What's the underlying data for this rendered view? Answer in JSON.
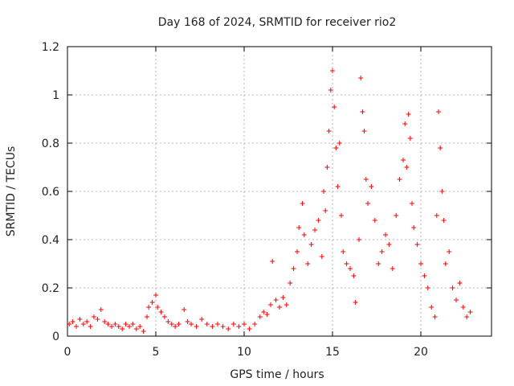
{
  "chart_data": {
    "type": "scatter",
    "title": "Day 168 of 2024, SRMTID for receiver rio2",
    "xlabel": "GPS time / hours",
    "ylabel": "SRMTID / TECUs",
    "xlim": [
      0,
      24
    ],
    "ylim": [
      0,
      1.2
    ],
    "xticks": [
      0,
      5,
      10,
      15,
      20
    ],
    "xtick_labels": [
      "0",
      "5",
      "10",
      "15",
      "20"
    ],
    "yticks": [
      0,
      0.2,
      0.4,
      0.6,
      0.8,
      1,
      1.2
    ],
    "ytick_labels": [
      "0",
      "0.2",
      "0.4",
      "0.6",
      "0.8",
      "1",
      "1.2"
    ],
    "grid": true,
    "marker": "+",
    "color": "#ff0000",
    "series": [
      {
        "name": "SRMTID",
        "points": [
          [
            0.1,
            0.05
          ],
          [
            0.3,
            0.06
          ],
          [
            0.5,
            0.04
          ],
          [
            0.7,
            0.07
          ],
          [
            0.9,
            0.05
          ],
          [
            1.1,
            0.06
          ],
          [
            1.3,
            0.04
          ],
          [
            1.5,
            0.08
          ],
          [
            1.7,
            0.07
          ],
          [
            1.9,
            0.11
          ],
          [
            2.1,
            0.06
          ],
          [
            2.3,
            0.05
          ],
          [
            2.5,
            0.04
          ],
          [
            2.7,
            0.05
          ],
          [
            2.9,
            0.04
          ],
          [
            3.1,
            0.03
          ],
          [
            3.3,
            0.05
          ],
          [
            3.5,
            0.04
          ],
          [
            3.7,
            0.05
          ],
          [
            3.9,
            0.03
          ],
          [
            4.1,
            0.04
          ],
          [
            4.3,
            0.02
          ],
          [
            4.5,
            0.08
          ],
          [
            4.6,
            0.12
          ],
          [
            4.8,
            0.14
          ],
          [
            5.0,
            0.17
          ],
          [
            5.1,
            0.12
          ],
          [
            5.3,
            0.1
          ],
          [
            5.5,
            0.08
          ],
          [
            5.7,
            0.06
          ],
          [
            5.9,
            0.05
          ],
          [
            6.1,
            0.04
          ],
          [
            6.3,
            0.05
          ],
          [
            6.6,
            0.11
          ],
          [
            6.8,
            0.06
          ],
          [
            7.0,
            0.05
          ],
          [
            7.3,
            0.04
          ],
          [
            7.6,
            0.07
          ],
          [
            7.9,
            0.05
          ],
          [
            8.2,
            0.04
          ],
          [
            8.5,
            0.05
          ],
          [
            8.8,
            0.04
          ],
          [
            9.1,
            0.03
          ],
          [
            9.4,
            0.05
          ],
          [
            9.7,
            0.04
          ],
          [
            10.0,
            0.05
          ],
          [
            10.3,
            0.03
          ],
          [
            10.6,
            0.05
          ],
          [
            10.9,
            0.08
          ],
          [
            11.1,
            0.1
          ],
          [
            11.3,
            0.09
          ],
          [
            11.5,
            0.13
          ],
          [
            11.6,
            0.31
          ],
          [
            11.8,
            0.15
          ],
          [
            12.0,
            0.12
          ],
          [
            12.2,
            0.16
          ],
          [
            12.4,
            0.13
          ],
          [
            12.6,
            0.22
          ],
          [
            12.8,
            0.28
          ],
          [
            13.0,
            0.35
          ],
          [
            13.1,
            0.45
          ],
          [
            13.3,
            0.55
          ],
          [
            13.4,
            0.42
          ],
          [
            13.6,
            0.3
          ],
          [
            13.8,
            0.38
          ],
          [
            14.0,
            0.44
          ],
          [
            14.2,
            0.48
          ],
          [
            14.4,
            0.33
          ],
          [
            14.5,
            0.6
          ],
          [
            14.6,
            0.52
          ],
          [
            14.7,
            0.7
          ],
          [
            14.8,
            0.85
          ],
          [
            14.9,
            1.02
          ],
          [
            15.0,
            1.1
          ],
          [
            15.1,
            0.95
          ],
          [
            15.2,
            0.78
          ],
          [
            15.3,
            0.62
          ],
          [
            15.4,
            0.8
          ],
          [
            15.5,
            0.5
          ],
          [
            15.6,
            0.35
          ],
          [
            15.8,
            0.3
          ],
          [
            16.0,
            0.28
          ],
          [
            16.2,
            0.25
          ],
          [
            16.3,
            0.14
          ],
          [
            16.5,
            0.4
          ],
          [
            16.6,
            1.07
          ],
          [
            16.7,
            0.93
          ],
          [
            16.8,
            0.85
          ],
          [
            16.9,
            0.65
          ],
          [
            17.0,
            0.55
          ],
          [
            17.2,
            0.62
          ],
          [
            17.4,
            0.48
          ],
          [
            17.6,
            0.3
          ],
          [
            17.8,
            0.35
          ],
          [
            18.0,
            0.42
          ],
          [
            18.2,
            0.38
          ],
          [
            18.4,
            0.28
          ],
          [
            18.6,
            0.5
          ],
          [
            18.8,
            0.65
          ],
          [
            19.0,
            0.73
          ],
          [
            19.1,
            0.88
          ],
          [
            19.2,
            0.7
          ],
          [
            19.3,
            0.92
          ],
          [
            19.4,
            0.82
          ],
          [
            19.5,
            0.55
          ],
          [
            19.6,
            0.45
          ],
          [
            19.8,
            0.38
          ],
          [
            20.0,
            0.3
          ],
          [
            20.2,
            0.25
          ],
          [
            20.4,
            0.2
          ],
          [
            20.6,
            0.12
          ],
          [
            20.8,
            0.08
          ],
          [
            20.9,
            0.5
          ],
          [
            21.0,
            0.93
          ],
          [
            21.1,
            0.78
          ],
          [
            21.2,
            0.6
          ],
          [
            21.3,
            0.48
          ],
          [
            21.4,
            0.3
          ],
          [
            21.6,
            0.35
          ],
          [
            21.8,
            0.2
          ],
          [
            22.0,
            0.15
          ],
          [
            22.2,
            0.22
          ],
          [
            22.4,
            0.12
          ],
          [
            22.6,
            0.08
          ],
          [
            22.8,
            0.1
          ]
        ]
      }
    ]
  }
}
